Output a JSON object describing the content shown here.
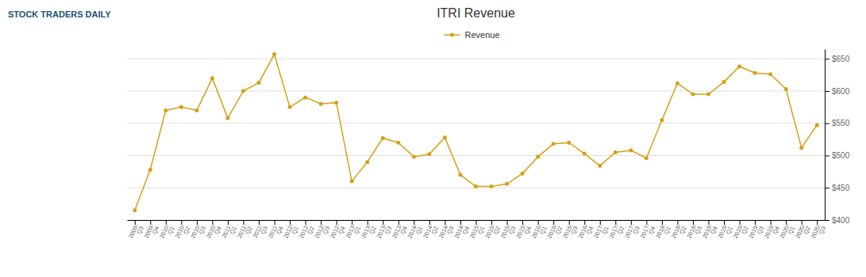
{
  "chart_data": {
    "type": "line",
    "title": "ITRI Revenue",
    "annotations": [
      "STOCK TRADERS DAILY"
    ],
    "categories": [
      "2009-\nQ3",
      "2009-\nQ4",
      "2010-\nQ1",
      "2010-\nQ2",
      "2010-\nQ3",
      "2010-\nQ4",
      "2011-\nQ1",
      "2011-\nQ2",
      "2011-\nQ3",
      "2011-\nQ4",
      "2012-\nQ1",
      "2012-\nQ2",
      "2012-\nQ3",
      "2012-\nQ4",
      "2013-\nQ1",
      "2013-\nQ2",
      "2013-\nQ3",
      "2013-\nQ4",
      "2014-\nQ1",
      "2014-\nQ2",
      "2014-\nQ3",
      "2014-\nQ4",
      "2015-\nQ1",
      "2015-\nQ2",
      "2015-\nQ3",
      "2015-\nQ4",
      "2016-\nQ1",
      "2016-\nQ2",
      "2016-\nQ3",
      "2016-\nQ4",
      "2017-\nQ1",
      "2017-\nQ2",
      "2017-\nQ3",
      "2017-\nQ4",
      "2018-\nQ1",
      "2018-\nQ2",
      "2018-\nQ3",
      "2018-\nQ4",
      "2019-\nQ1",
      "2019-\nQ2",
      "2019-\nQ3",
      "2019-\nQ4",
      "2020-\nQ1",
      "2020-\nQ2",
      "2020-\nQ3"
    ],
    "series": [
      {
        "name": "Revenue",
        "color": "#D4A017",
        "marker": "circle",
        "line_style": "solid",
        "values": [
          415,
          478,
          570,
          575,
          570,
          620,
          558,
          600,
          613,
          657,
          575,
          590,
          580,
          582,
          460,
          490,
          527,
          520,
          498,
          502,
          528,
          470,
          452,
          452,
          456,
          472,
          498,
          518,
          520,
          503,
          484,
          505,
          508,
          496,
          555,
          612,
          595,
          595,
          614,
          638,
          628,
          626,
          603,
          512,
          547
        ]
      }
    ],
    "ylim": [
      400,
      665
    ],
    "yticks": [
      {
        "value": 400,
        "label": "$400"
      },
      {
        "value": 450,
        "label": "$450"
      },
      {
        "value": 500,
        "label": "$500"
      },
      {
        "value": 550,
        "label": "$550"
      },
      {
        "value": 600,
        "label": "$600"
      },
      {
        "value": 650,
        "label": "$650"
      }
    ],
    "grid": true,
    "legend": "top"
  }
}
